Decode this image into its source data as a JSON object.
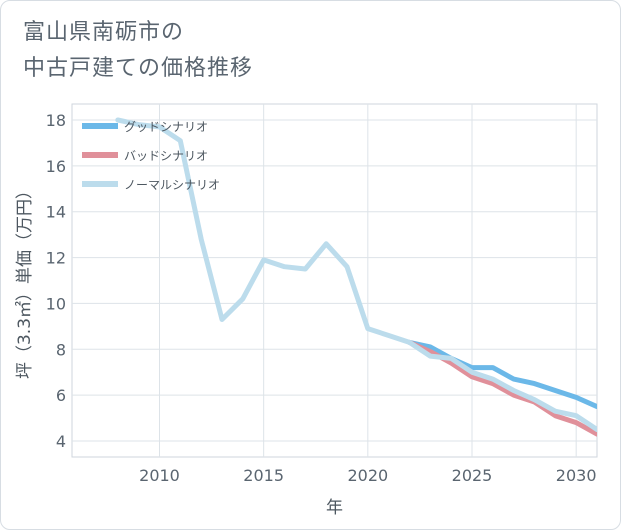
{
  "title_lines": [
    "富山県南砺市の",
    "中古戸建ての価格推移"
  ],
  "chart_data": {
    "type": "line",
    "xlabel": "年",
    "ylabel": "坪（3.3㎡）単価（万円）",
    "xlim": [
      2005.8,
      2031
    ],
    "ylim": [
      3.3,
      18.7
    ],
    "xticks": [
      2010,
      2015,
      2020,
      2025,
      2030
    ],
    "yticks": [
      4,
      6,
      8,
      10,
      12,
      14,
      16,
      18
    ],
    "legend_position": "top-left",
    "series": [
      {
        "name": "グッドシナリオ",
        "color": "#6bb8e8",
        "x": [
          2022,
          2023,
          2024,
          2025,
          2026,
          2027,
          2028,
          2029,
          2030,
          2031
        ],
        "y": [
          8.3,
          8.1,
          7.6,
          7.2,
          7.2,
          6.7,
          6.5,
          6.2,
          5.9,
          5.5
        ]
      },
      {
        "name": "バッドシナリオ",
        "color": "#e0909a",
        "x": [
          2022,
          2023,
          2024,
          2025,
          2026,
          2027,
          2028,
          2029,
          2030,
          2031
        ],
        "y": [
          8.3,
          7.9,
          7.4,
          6.8,
          6.5,
          6.0,
          5.7,
          5.1,
          4.8,
          4.3
        ]
      },
      {
        "name": "ノーマルシナリオ",
        "color": "#bcdcec",
        "x": [
          2008,
          2009,
          2010,
          2011,
          2012,
          2013,
          2014,
          2015,
          2016,
          2017,
          2018,
          2019,
          2020,
          2021,
          2022,
          2023,
          2024,
          2025,
          2026,
          2027,
          2028,
          2029,
          2030,
          2031
        ],
        "y": [
          18.0,
          17.8,
          17.7,
          17.1,
          12.8,
          9.3,
          10.2,
          11.9,
          11.6,
          11.5,
          12.6,
          11.6,
          8.9,
          8.6,
          8.3,
          7.7,
          7.6,
          7.0,
          6.7,
          6.2,
          5.8,
          5.3,
          5.1,
          4.5
        ]
      }
    ]
  }
}
